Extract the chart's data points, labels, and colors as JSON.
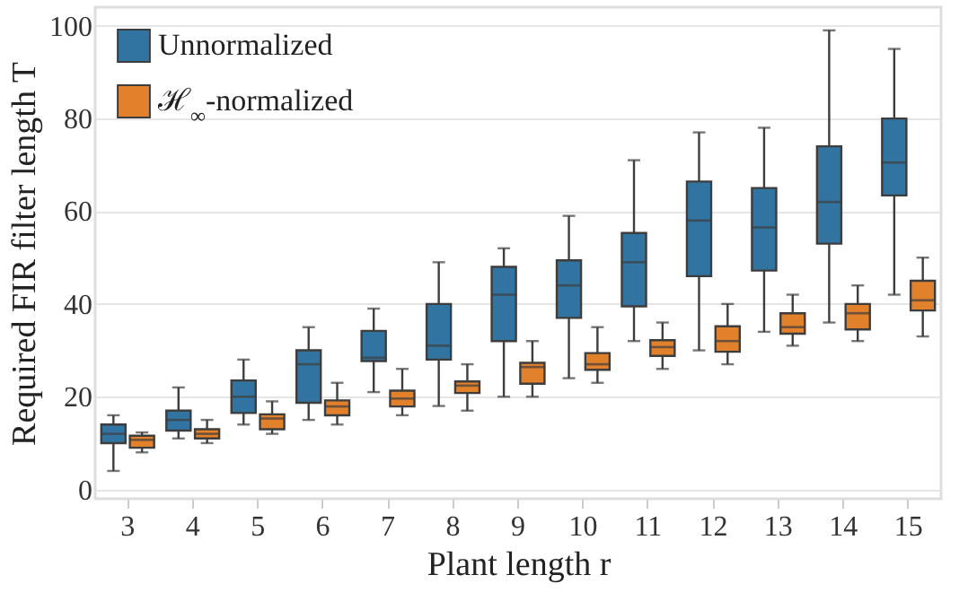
{
  "chart_data": {
    "type": "box",
    "xlabel": "Plant length r",
    "ylabel": "Required FIR filter length T",
    "categories": [
      "3",
      "4",
      "5",
      "6",
      "7",
      "8",
      "9",
      "10",
      "11",
      "12",
      "13",
      "14",
      "15"
    ],
    "ylim": [
      -2,
      104
    ],
    "yticks": [
      0,
      20,
      40,
      60,
      80,
      100
    ],
    "grid": "y",
    "legend": "top left",
    "series": [
      {
        "name": "Unnormalized",
        "color": "#3274a1",
        "boxes": [
          {
            "low": 4,
            "q1": 10,
            "median": 12,
            "q3": 14,
            "high": 16
          },
          {
            "low": 11,
            "q1": 12.7,
            "median": 15,
            "q3": 17,
            "high": 22
          },
          {
            "low": 14,
            "q1": 16.5,
            "median": 20,
            "q3": 23.5,
            "high": 28
          },
          {
            "low": 15,
            "q1": 18.7,
            "median": 27,
            "q3": 30,
            "high": 35
          },
          {
            "low": 21,
            "q1": 27.7,
            "median": 28.4,
            "q3": 34.2,
            "high": 39
          },
          {
            "low": 18,
            "q1": 28,
            "median": 31,
            "q3": 40,
            "high": 49
          },
          {
            "low": 20,
            "q1": 32,
            "median": 42,
            "q3": 48,
            "high": 52
          },
          {
            "low": 24,
            "q1": 37,
            "median": 44,
            "q3": 49.4,
            "high": 59
          },
          {
            "low": 32,
            "q1": 39.5,
            "median": 49,
            "q3": 55.3,
            "high": 71
          },
          {
            "low": 30,
            "q1": 46,
            "median": 58,
            "q3": 66.4,
            "high": 77
          },
          {
            "low": 34,
            "q1": 47.2,
            "median": 56.5,
            "q3": 65,
            "high": 78
          },
          {
            "low": 36,
            "q1": 53,
            "median": 62,
            "q3": 74,
            "high": 99
          },
          {
            "low": 42,
            "q1": 63.4,
            "median": 70.5,
            "q3": 80,
            "high": 95
          }
        ]
      },
      {
        "name": "ℋ$_{∞}$-normalized",
        "color": "#e1812c",
        "boxes": [
          {
            "low": 8,
            "q1": 9,
            "median": 10.7,
            "q3": 11.6,
            "high": 12.3
          },
          {
            "low": 10,
            "q1": 11,
            "median": 12,
            "q3": 13,
            "high": 15
          },
          {
            "low": 12,
            "q1": 13,
            "median": 15.3,
            "q3": 16.2,
            "high": 19
          },
          {
            "low": 14,
            "q1": 16,
            "median": 17.9,
            "q3": 19.2,
            "high": 23
          },
          {
            "low": 16,
            "q1": 17.9,
            "median": 19.6,
            "q3": 21.3,
            "high": 26
          },
          {
            "low": 17,
            "q1": 20.8,
            "median": 22.4,
            "q3": 23.3,
            "high": 27
          },
          {
            "low": 20,
            "q1": 22.8,
            "median": 26.4,
            "q3": 27.3,
            "high": 32
          },
          {
            "low": 23,
            "q1": 25.8,
            "median": 27,
            "q3": 29.4,
            "high": 35
          },
          {
            "low": 26,
            "q1": 28.8,
            "median": 30.7,
            "q3": 32.2,
            "high": 36
          },
          {
            "low": 27,
            "q1": 29.7,
            "median": 32,
            "q3": 35.2,
            "high": 40
          },
          {
            "low": 31,
            "q1": 33.6,
            "median": 35,
            "q3": 38,
            "high": 42
          },
          {
            "low": 32,
            "q1": 34.5,
            "median": 38,
            "q3": 40,
            "high": 44
          },
          {
            "low": 33,
            "q1": 38.6,
            "median": 40.8,
            "q3": 45,
            "high": 50
          }
        ]
      }
    ]
  }
}
